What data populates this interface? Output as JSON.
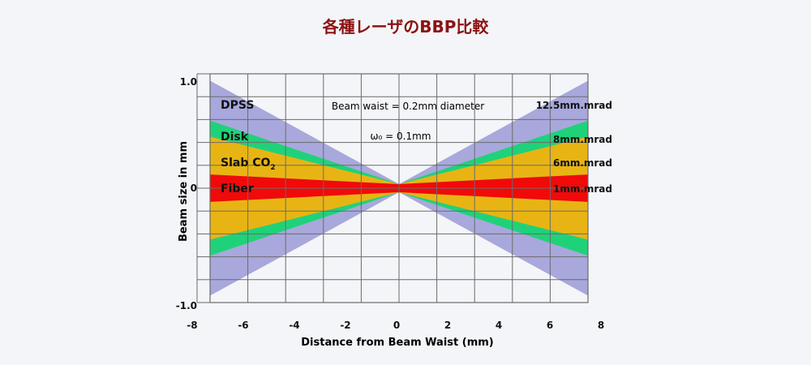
{
  "page": {
    "title": "各種レーザのBBP比較"
  },
  "colors": {
    "title": "#8b1313",
    "dpss": "#a8a8dc",
    "disk": "#1fd27a",
    "slab": "#e8b414",
    "fiber": "#f00a0a",
    "grid": "#6b6b6b",
    "text": "#111111"
  },
  "chart_data": {
    "type": "area",
    "title": "各種レーザのBBP比較",
    "xlabel": "Distance from Beam Waist (mm)",
    "ylabel": "Beam size in mm",
    "xlim": [
      -7.5,
      7.5
    ],
    "ylim": [
      -1.0,
      1.0
    ],
    "x_ticks": [
      -8,
      -6,
      -4,
      -2,
      0,
      2,
      4,
      6,
      8
    ],
    "x_tick_labels": [
      "-8",
      "-6",
      "-4",
      "-2",
      "0",
      "2",
      "4",
      "6",
      "8"
    ],
    "y_tick_labels": [
      {
        "value": 1.0,
        "label": "1.0"
      },
      {
        "value": 0.0,
        "label": "0"
      },
      {
        "value": -1.0,
        "label": "-1.0"
      }
    ],
    "grid": true,
    "annotations": [
      "Beam waist = 0.2mm diameter",
      "ω₀ = 0.1mm"
    ],
    "beam_waist_mm": 0.1,
    "series": [
      {
        "key": "dpss",
        "name": "DPSS",
        "bpp_label": "12.5mm.mrad",
        "bpp": 12.5,
        "edge_at_7_5": 0.94
      },
      {
        "key": "disk",
        "name": "Disk",
        "bpp_label": "8mm.mrad",
        "bpp": 8,
        "edge_at_7_5": 0.59
      },
      {
        "key": "slab",
        "name": "Slab CO",
        "name_sub": "2",
        "bpp_label": "6mm.mrad",
        "bpp": 6,
        "edge_at_7_5": 0.45
      },
      {
        "key": "fiber",
        "name": "Fiber",
        "bpp_label": "1mm.mrad",
        "bpp": 1,
        "edge_at_7_5": 0.12
      }
    ]
  }
}
